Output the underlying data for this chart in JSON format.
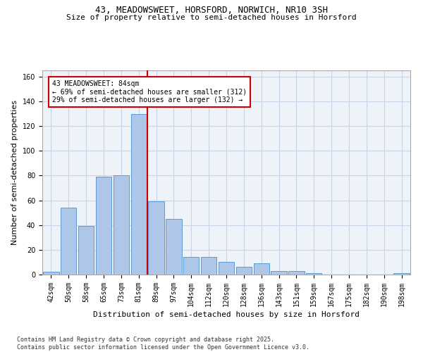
{
  "title": "43, MEADOWSWEET, HORSFORD, NORWICH, NR10 3SH",
  "subtitle": "Size of property relative to semi-detached houses in Horsford",
  "xlabel": "Distribution of semi-detached houses by size in Horsford",
  "ylabel": "Number of semi-detached properties",
  "categories": [
    "42sqm",
    "50sqm",
    "58sqm",
    "65sqm",
    "73sqm",
    "81sqm",
    "89sqm",
    "97sqm",
    "104sqm",
    "112sqm",
    "120sqm",
    "128sqm",
    "136sqm",
    "143sqm",
    "151sqm",
    "159sqm",
    "167sqm",
    "175sqm",
    "182sqm",
    "190sqm",
    "198sqm"
  ],
  "values": [
    2,
    54,
    39,
    79,
    80,
    130,
    59,
    45,
    14,
    14,
    10,
    6,
    9,
    3,
    3,
    1,
    0,
    0,
    0,
    0,
    1
  ],
  "bar_color": "#aec6e8",
  "bar_edgecolor": "#5b9bd5",
  "vline_x": 5.5,
  "vline_color": "#cc0000",
  "annotation_text": "43 MEADOWSWEET: 84sqm\n← 69% of semi-detached houses are smaller (312)\n29% of semi-detached houses are larger (132) →",
  "annotation_box_edgecolor": "#cc0000",
  "ylim": [
    0,
    165
  ],
  "yticks": [
    0,
    20,
    40,
    60,
    80,
    100,
    120,
    140,
    160
  ],
  "grid_color": "#c8d4e8",
  "background_color": "#eef2f9",
  "footer": "Contains HM Land Registry data © Crown copyright and database right 2025.\nContains public sector information licensed under the Open Government Licence v3.0.",
  "title_fontsize": 9,
  "subtitle_fontsize": 8,
  "xlabel_fontsize": 8,
  "ylabel_fontsize": 8,
  "tick_fontsize": 7,
  "annotation_fontsize": 7,
  "footer_fontsize": 6
}
